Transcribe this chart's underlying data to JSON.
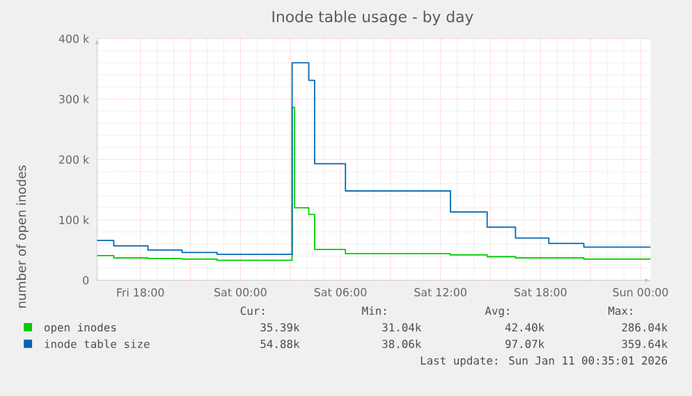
{
  "chart_data": {
    "type": "step",
    "title": "Inode table usage - by day",
    "ylabel": "number of open inodes",
    "x": [
      "2026-01-09T15:24",
      "2026-01-09T16:24",
      "2026-01-09T18:27",
      "2026-01-09T20:30",
      "2026-01-09T22:36",
      "2026-01-10T03:06",
      "2026-01-10T04:06",
      "2026-01-10T04:27",
      "2026-01-10T06:18",
      "2026-01-10T12:36",
      "2026-01-10T14:48",
      "2026-01-10T16:30",
      "2026-01-10T18:30",
      "2026-01-10T20:36",
      "2026-01-11T00:36"
    ],
    "series": [
      {
        "name": "open inodes",
        "color": "#00cc00",
        "x": [
          "2026-01-09T15:24",
          "2026-01-09T16:24",
          "2026-01-09T18:27",
          "2026-01-09T20:30",
          "2026-01-09T22:36",
          "2026-01-10T03:06",
          "2026-01-10T03:15",
          "2026-01-10T04:06",
          "2026-01-10T04:27",
          "2026-01-10T06:18",
          "2026-01-10T12:36",
          "2026-01-10T14:48",
          "2026-01-10T16:30",
          "2026-01-10T20:36",
          "2026-01-11T00:36"
        ],
        "values": [
          41000,
          37000,
          36000,
          35000,
          33000,
          286000,
          120000,
          109000,
          51000,
          44000,
          42000,
          39000,
          37000,
          35000,
          35000
        ]
      },
      {
        "name": "inode table size",
        "color": "#0066b3",
        "values": [
          66000,
          57000,
          50000,
          46000,
          43000,
          360000,
          331000,
          193000,
          148000,
          113000,
          88000,
          70000,
          61000,
          55000,
          55000
        ]
      }
    ],
    "xlim": [
      "2026-01-09T15:24",
      "2026-01-11T00:36"
    ],
    "xticks": [
      {
        "value": "2026-01-09T18:00",
        "label": "Fri 18:00"
      },
      {
        "value": "2026-01-09T21:00",
        "label": null
      },
      {
        "value": "2026-01-10T00:00",
        "label": "Sat 00:00"
      },
      {
        "value": "2026-01-10T03:00",
        "label": null
      },
      {
        "value": "2026-01-10T06:00",
        "label": "Sat 06:00"
      },
      {
        "value": "2026-01-10T09:00",
        "label": null
      },
      {
        "value": "2026-01-10T12:00",
        "label": "Sat 12:00"
      },
      {
        "value": "2026-01-10T15:00",
        "label": null
      },
      {
        "value": "2026-01-10T18:00",
        "label": "Sat 18:00"
      },
      {
        "value": "2026-01-10T21:00",
        "label": null
      },
      {
        "value": "2026-01-11T00:00",
        "label": "Sun 00:00"
      }
    ],
    "ylim": [
      0,
      400000
    ],
    "yticks": [
      {
        "value": 0,
        "label": "0"
      },
      {
        "value": 100000,
        "label": "100 k"
      },
      {
        "value": 200000,
        "label": "200 k"
      },
      {
        "value": 300000,
        "label": "300 k"
      },
      {
        "value": 400000,
        "label": "400 k"
      }
    ],
    "grid": true,
    "legend": "bottom",
    "marker": "none",
    "line_style": "solid",
    "annotations": [
      "Cur:",
      "Min:",
      "Avg:",
      "Max:",
      "35.39k",
      "31.04k",
      "42.40k",
      "286.04k",
      "54.88k",
      "38.06k",
      "97.07k",
      "359.64k",
      "Last update: Sun Jan 11 00:35:01 2026"
    ]
  }
}
